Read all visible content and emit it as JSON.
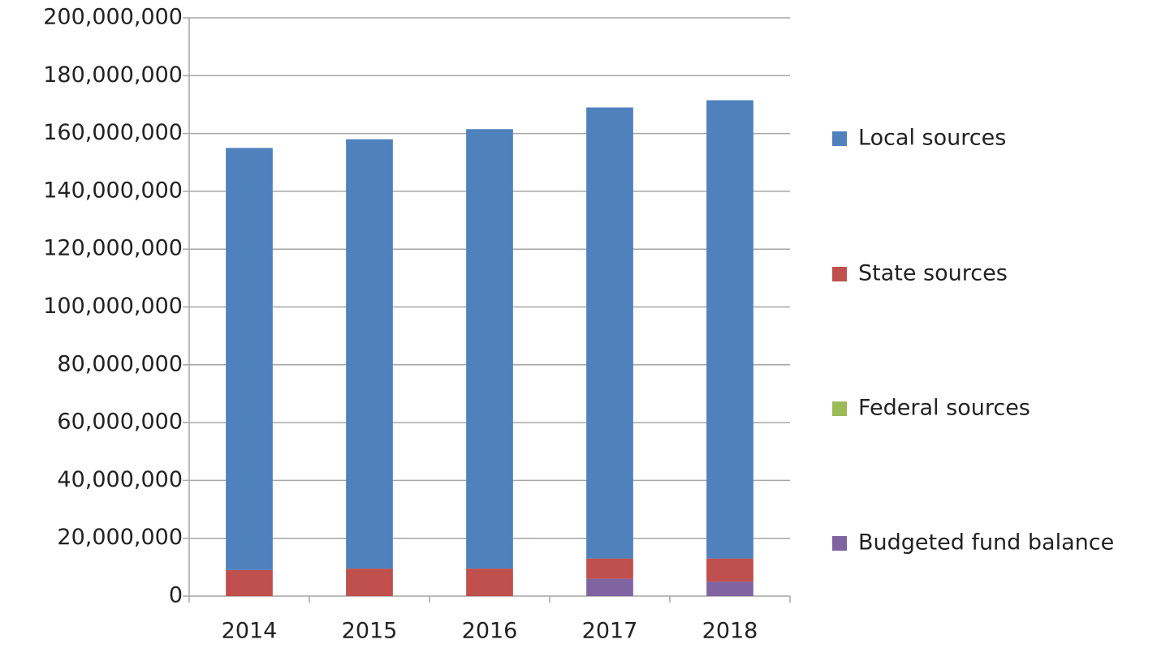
{
  "chart_data": {
    "type": "stacked_bar",
    "categories": [
      "2014",
      "2015",
      "2016",
      "2017",
      "2018"
    ],
    "series": [
      {
        "name": "Budgeted fund balance",
        "color": "#8064a2",
        "values": [
          0,
          0,
          0,
          6000000,
          5000000
        ]
      },
      {
        "name": "Federal sources",
        "color": "#9bbb59",
        "values": [
          0,
          0,
          0,
          0,
          0
        ]
      },
      {
        "name": "State sources",
        "color": "#c0504d",
        "values": [
          9000000,
          9500000,
          9500000,
          7000000,
          8000000
        ]
      },
      {
        "name": "Local sources",
        "color": "#4f81bd",
        "values": [
          146000000,
          148500000,
          152000000,
          156000000,
          158500000
        ]
      }
    ],
    "ylim": [
      0,
      200000000
    ],
    "yticks": [
      0,
      {
        "value": 20000000,
        "label": "20,000,000"
      },
      {
        "value": 40000000,
        "label": "40,000,000"
      },
      {
        "value": 60000000,
        "label": "60,000,000"
      },
      {
        "value": 80000000,
        "label": "80,000,000"
      },
      {
        "value": 100000000,
        "label": "100,000,000"
      },
      {
        "value": 120000000,
        "label": "120,000,000"
      },
      {
        "value": 140000000,
        "label": "140,000,000"
      },
      {
        "value": 160000000,
        "label": "160,000,000"
      },
      {
        "value": 180000000,
        "label": "180,000,000"
      },
      {
        "value": 200000000,
        "label": "200,000,000"
      }
    ],
    "grid": true,
    "legend": "right"
  }
}
